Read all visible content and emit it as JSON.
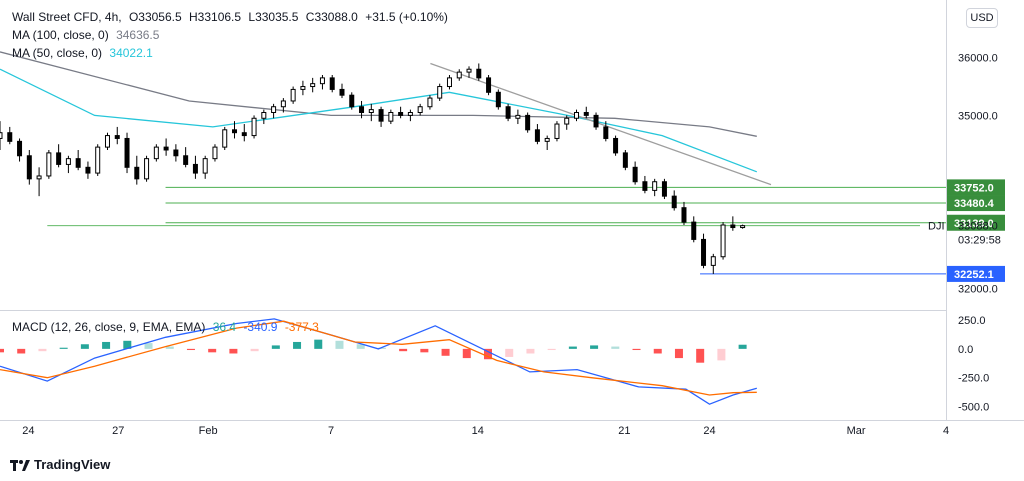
{
  "header": {
    "symbol": "Wall Street CFD, 4h,",
    "open": "O33056.5",
    "high": "H33106.5",
    "low": "L33035.5",
    "close": "C33088.0",
    "change": "+31.5 (+0.10%)"
  },
  "indicators": {
    "ma100_label": "MA (100, close, 0)",
    "ma100_value": "34636.5",
    "ma50_label": "MA (50, close, 0)",
    "ma50_value": "34022.1",
    "macd_label": "MACD (12, 26, close, 9, EMA, EMA)",
    "macd_hist_value": "36.4",
    "macd_value": "-340.9",
    "signal_value": "-377.3"
  },
  "currency_button": "USD",
  "price_ticker": "DJI",
  "countdown": "03:29:58",
  "footer_brand": "TradingView",
  "colors": {
    "ma100": "#787b86",
    "ma50": "#26c6da",
    "macd_line": "#2962ff",
    "signal_line": "#ff6d00",
    "hist_pos_strong": "#26a69a",
    "hist_pos_weak": "#b2dfdb",
    "hist_neg_strong": "#ff5252",
    "hist_neg_weak": "#ffcdd2",
    "level_line": "#4caf50",
    "support_line": "#2962ff"
  },
  "chart_data": {
    "type": "candlestick",
    "price_axis": {
      "ylim": [
        31800,
        37000
      ],
      "ticks": [
        {
          "value": 32000,
          "label": "32000.0"
        },
        {
          "value": 35000,
          "label": "35000.0"
        },
        {
          "value": 36000,
          "label": "36000.0"
        }
      ]
    },
    "macd_axis": {
      "ylim": [
        -600,
        320
      ],
      "ticks": [
        {
          "value": 250,
          "label": "250.0"
        },
        {
          "value": 0,
          "label": "0.0"
        },
        {
          "value": -250,
          "label": "-250.0"
        },
        {
          "value": -500,
          "label": "-500.0"
        }
      ]
    },
    "x_axis": {
      "range": [
        0,
        200
      ],
      "ticks": [
        {
          "x": 6,
          "label": "24"
        },
        {
          "x": 25,
          "label": "27"
        },
        {
          "x": 44,
          "label": "Feb"
        },
        {
          "x": 70,
          "label": "7"
        },
        {
          "x": 101,
          "label": "14"
        },
        {
          "x": 132,
          "label": "21"
        },
        {
          "x": 150,
          "label": "24"
        },
        {
          "x": 181,
          "label": "Mar"
        },
        {
          "x": 200,
          "label": "4"
        }
      ]
    },
    "candles": [
      [
        34600,
        34900,
        34400,
        34700
      ],
      [
        34700,
        34800,
        34500,
        34550
      ],
      [
        34550,
        34600,
        34200,
        34300
      ],
      [
        34300,
        34400,
        33800,
        33900
      ],
      [
        33900,
        34100,
        33600,
        33950
      ],
      [
        33950,
        34400,
        33900,
        34350
      ],
      [
        34350,
        34500,
        34100,
        34150
      ],
      [
        34150,
        34300,
        34000,
        34250
      ],
      [
        34250,
        34400,
        34050,
        34100
      ],
      [
        34100,
        34200,
        33900,
        34000
      ],
      [
        34000,
        34500,
        33950,
        34450
      ],
      [
        34450,
        34700,
        34400,
        34650
      ],
      [
        34650,
        34800,
        34500,
        34600
      ],
      [
        34600,
        34700,
        34000,
        34100
      ],
      [
        34100,
        34300,
        33800,
        33900
      ],
      [
        33900,
        34300,
        33850,
        34250
      ],
      [
        34250,
        34500,
        34200,
        34450
      ],
      [
        34450,
        34600,
        34300,
        34400
      ],
      [
        34400,
        34500,
        34200,
        34300
      ],
      [
        34300,
        34450,
        34100,
        34150
      ],
      [
        34150,
        34300,
        33900,
        34000
      ],
      [
        34000,
        34300,
        33900,
        34250
      ],
      [
        34250,
        34500,
        34200,
        34450
      ],
      [
        34450,
        34800,
        34400,
        34750
      ],
      [
        34750,
        34900,
        34600,
        34700
      ],
      [
        34700,
        34850,
        34550,
        34650
      ],
      [
        34650,
        35000,
        34600,
        34950
      ],
      [
        34950,
        35100,
        34850,
        35050
      ],
      [
        35050,
        35200,
        34950,
        35150
      ],
      [
        35150,
        35300,
        35050,
        35250
      ],
      [
        35250,
        35500,
        35200,
        35450
      ],
      [
        35450,
        35600,
        35350,
        35500
      ],
      [
        35500,
        35650,
        35400,
        35550
      ],
      [
        35550,
        35700,
        35450,
        35650
      ],
      [
        35650,
        35700,
        35400,
        35450
      ],
      [
        35450,
        35550,
        35300,
        35350
      ],
      [
        35350,
        35400,
        35100,
        35150
      ],
      [
        35150,
        35250,
        34950,
        35050
      ],
      [
        35050,
        35200,
        34900,
        35100
      ],
      [
        35100,
        35150,
        34800,
        34900
      ],
      [
        34900,
        35100,
        34850,
        35050
      ],
      [
        35050,
        35150,
        34950,
        35000
      ],
      [
        35000,
        35100,
        34900,
        35050
      ],
      [
        35050,
        35200,
        35000,
        35150
      ],
      [
        35150,
        35350,
        35100,
        35300
      ],
      [
        35300,
        35550,
        35250,
        35500
      ],
      [
        35500,
        35700,
        35450,
        35650
      ],
      [
        35650,
        35800,
        35600,
        35750
      ],
      [
        35750,
        35850,
        35650,
        35800
      ],
      [
        35800,
        35900,
        35600,
        35650
      ],
      [
        35650,
        35700,
        35350,
        35400
      ],
      [
        35400,
        35450,
        35100,
        35150
      ],
      [
        35150,
        35200,
        34900,
        34950
      ],
      [
        34950,
        35100,
        34850,
        35000
      ],
      [
        35000,
        35050,
        34700,
        34750
      ],
      [
        34750,
        34850,
        34500,
        34550
      ],
      [
        34550,
        34650,
        34400,
        34600
      ],
      [
        34600,
        34900,
        34550,
        34850
      ],
      [
        34850,
        35000,
        34750,
        34950
      ],
      [
        34950,
        35100,
        34900,
        35050
      ],
      [
        35050,
        35150,
        34950,
        35000
      ],
      [
        35000,
        35050,
        34750,
        34800
      ],
      [
        34800,
        34900,
        34550,
        34600
      ],
      [
        34600,
        34650,
        34300,
        34350
      ],
      [
        34350,
        34400,
        34050,
        34100
      ],
      [
        34100,
        34200,
        33800,
        33850
      ],
      [
        33850,
        33950,
        33650,
        33700
      ],
      [
        33700,
        33900,
        33600,
        33850
      ],
      [
        33850,
        33900,
        33550,
        33600
      ],
      [
        33600,
        33700,
        33350,
        33400
      ],
      [
        33400,
        33500,
        33100,
        33150
      ],
      [
        33150,
        33250,
        32800,
        32850
      ],
      [
        32850,
        32950,
        32350,
        32400
      ],
      [
        32400,
        32600,
        32252,
        32550
      ],
      [
        32550,
        33150,
        32500,
        33100
      ],
      [
        33100,
        33250,
        33000,
        33056
      ],
      [
        33056,
        33107,
        33036,
        33088
      ]
    ],
    "ma100": [
      [
        0,
        36100
      ],
      [
        40,
        35250
      ],
      [
        70,
        35000
      ],
      [
        100,
        35000
      ],
      [
        130,
        34950
      ],
      [
        150,
        34800
      ],
      [
        160,
        34637
      ]
    ],
    "ma50": [
      [
        0,
        35800
      ],
      [
        20,
        35000
      ],
      [
        45,
        34800
      ],
      [
        75,
        35150
      ],
      [
        95,
        35400
      ],
      [
        120,
        35000
      ],
      [
        140,
        34650
      ],
      [
        160,
        34022
      ]
    ],
    "trendline": [
      [
        91,
        35900
      ],
      [
        163,
        33800
      ]
    ],
    "levels": [
      {
        "value": 33752.0,
        "label": "33752.0",
        "kind": "resistance"
      },
      {
        "value": 33480.4,
        "label": "33480.4",
        "kind": "resistance"
      },
      {
        "value": 33139.0,
        "label": "33139.0",
        "kind": "resistance"
      },
      {
        "value": 32252.1,
        "label": "32252.1",
        "kind": "support"
      }
    ],
    "current_price": {
      "value": 33088.0,
      "label": "33088.0"
    },
    "macd_line": [
      [
        0,
        -150
      ],
      [
        10,
        -280
      ],
      [
        20,
        -80
      ],
      [
        35,
        100
      ],
      [
        50,
        220
      ],
      [
        58,
        260
      ],
      [
        70,
        120
      ],
      [
        80,
        0
      ],
      [
        92,
        200
      ],
      [
        102,
        0
      ],
      [
        112,
        -200
      ],
      [
        122,
        -180
      ],
      [
        135,
        -330
      ],
      [
        145,
        -350
      ],
      [
        150,
        -480
      ],
      [
        155,
        -400
      ],
      [
        160,
        -341
      ]
    ],
    "signal_line": [
      [
        0,
        -180
      ],
      [
        10,
        -250
      ],
      [
        20,
        -150
      ],
      [
        35,
        20
      ],
      [
        50,
        180
      ],
      [
        60,
        240
      ],
      [
        75,
        60
      ],
      [
        85,
        40
      ],
      [
        95,
        80
      ],
      [
        105,
        -100
      ],
      [
        115,
        -200
      ],
      [
        125,
        -250
      ],
      [
        140,
        -320
      ],
      [
        150,
        -400
      ],
      [
        155,
        -380
      ],
      [
        160,
        -377
      ]
    ],
    "macd_histogram_sample": [
      -30,
      -40,
      -20,
      10,
      40,
      60,
      70,
      50,
      20,
      -10,
      -30,
      -40,
      -20,
      30,
      60,
      80,
      70,
      40,
      10,
      -20,
      -30,
      -60,
      -80,
      -90,
      -70,
      -40,
      -10,
      20,
      30,
      20,
      -10,
      -40,
      -80,
      -120,
      -100,
      36
    ]
  }
}
